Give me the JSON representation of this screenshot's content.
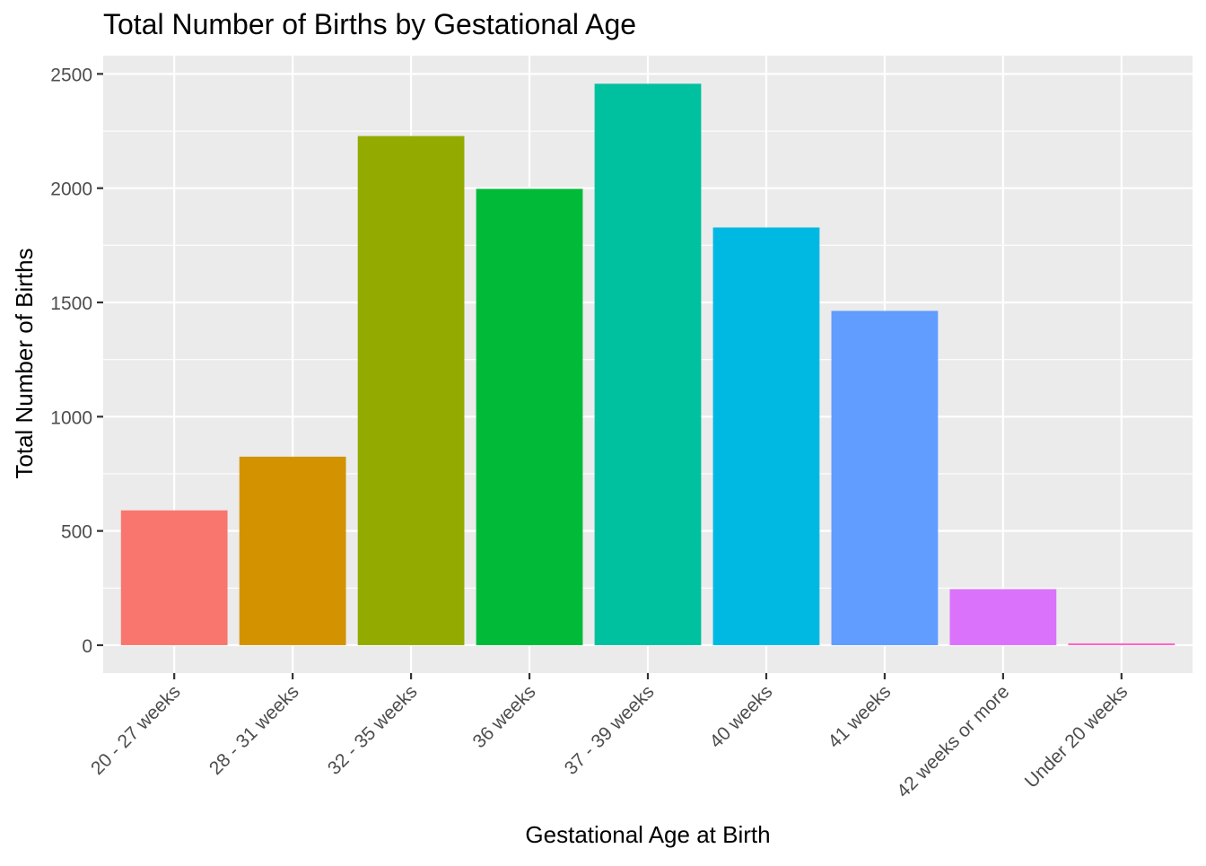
{
  "chart_data": {
    "type": "bar",
    "title": "Total Number of Births by Gestational Age",
    "xlabel": "Gestational Age at Birth",
    "ylabel": "Total Number of Births",
    "categories": [
      "20 - 27 weeks",
      "28 - 31 weeks",
      "32 - 35 weeks",
      "36 weeks",
      "37 - 39 weeks",
      "40 weeks",
      "41 weeks",
      "42 weeks or more",
      "Under 20 weeks"
    ],
    "values": [
      590,
      825,
      2228,
      1997,
      2457,
      1828,
      1463,
      245,
      8
    ],
    "colors": [
      "#F8766D",
      "#D39200",
      "#93AA00",
      "#00BA38",
      "#00C19F",
      "#00B9E3",
      "#619CFF",
      "#DB72FB",
      "#FF61C3"
    ],
    "ylim": [
      -122,
      2580
    ],
    "yticks": [
      0,
      500,
      1000,
      1500,
      2000,
      2500
    ],
    "ytick_labels": [
      "0",
      "500",
      "1000",
      "1500",
      "2000",
      "2500"
    ],
    "grid": true,
    "legend": "none",
    "panel_background": "#EBEBEB",
    "grid_color": "#FFFFFF"
  }
}
